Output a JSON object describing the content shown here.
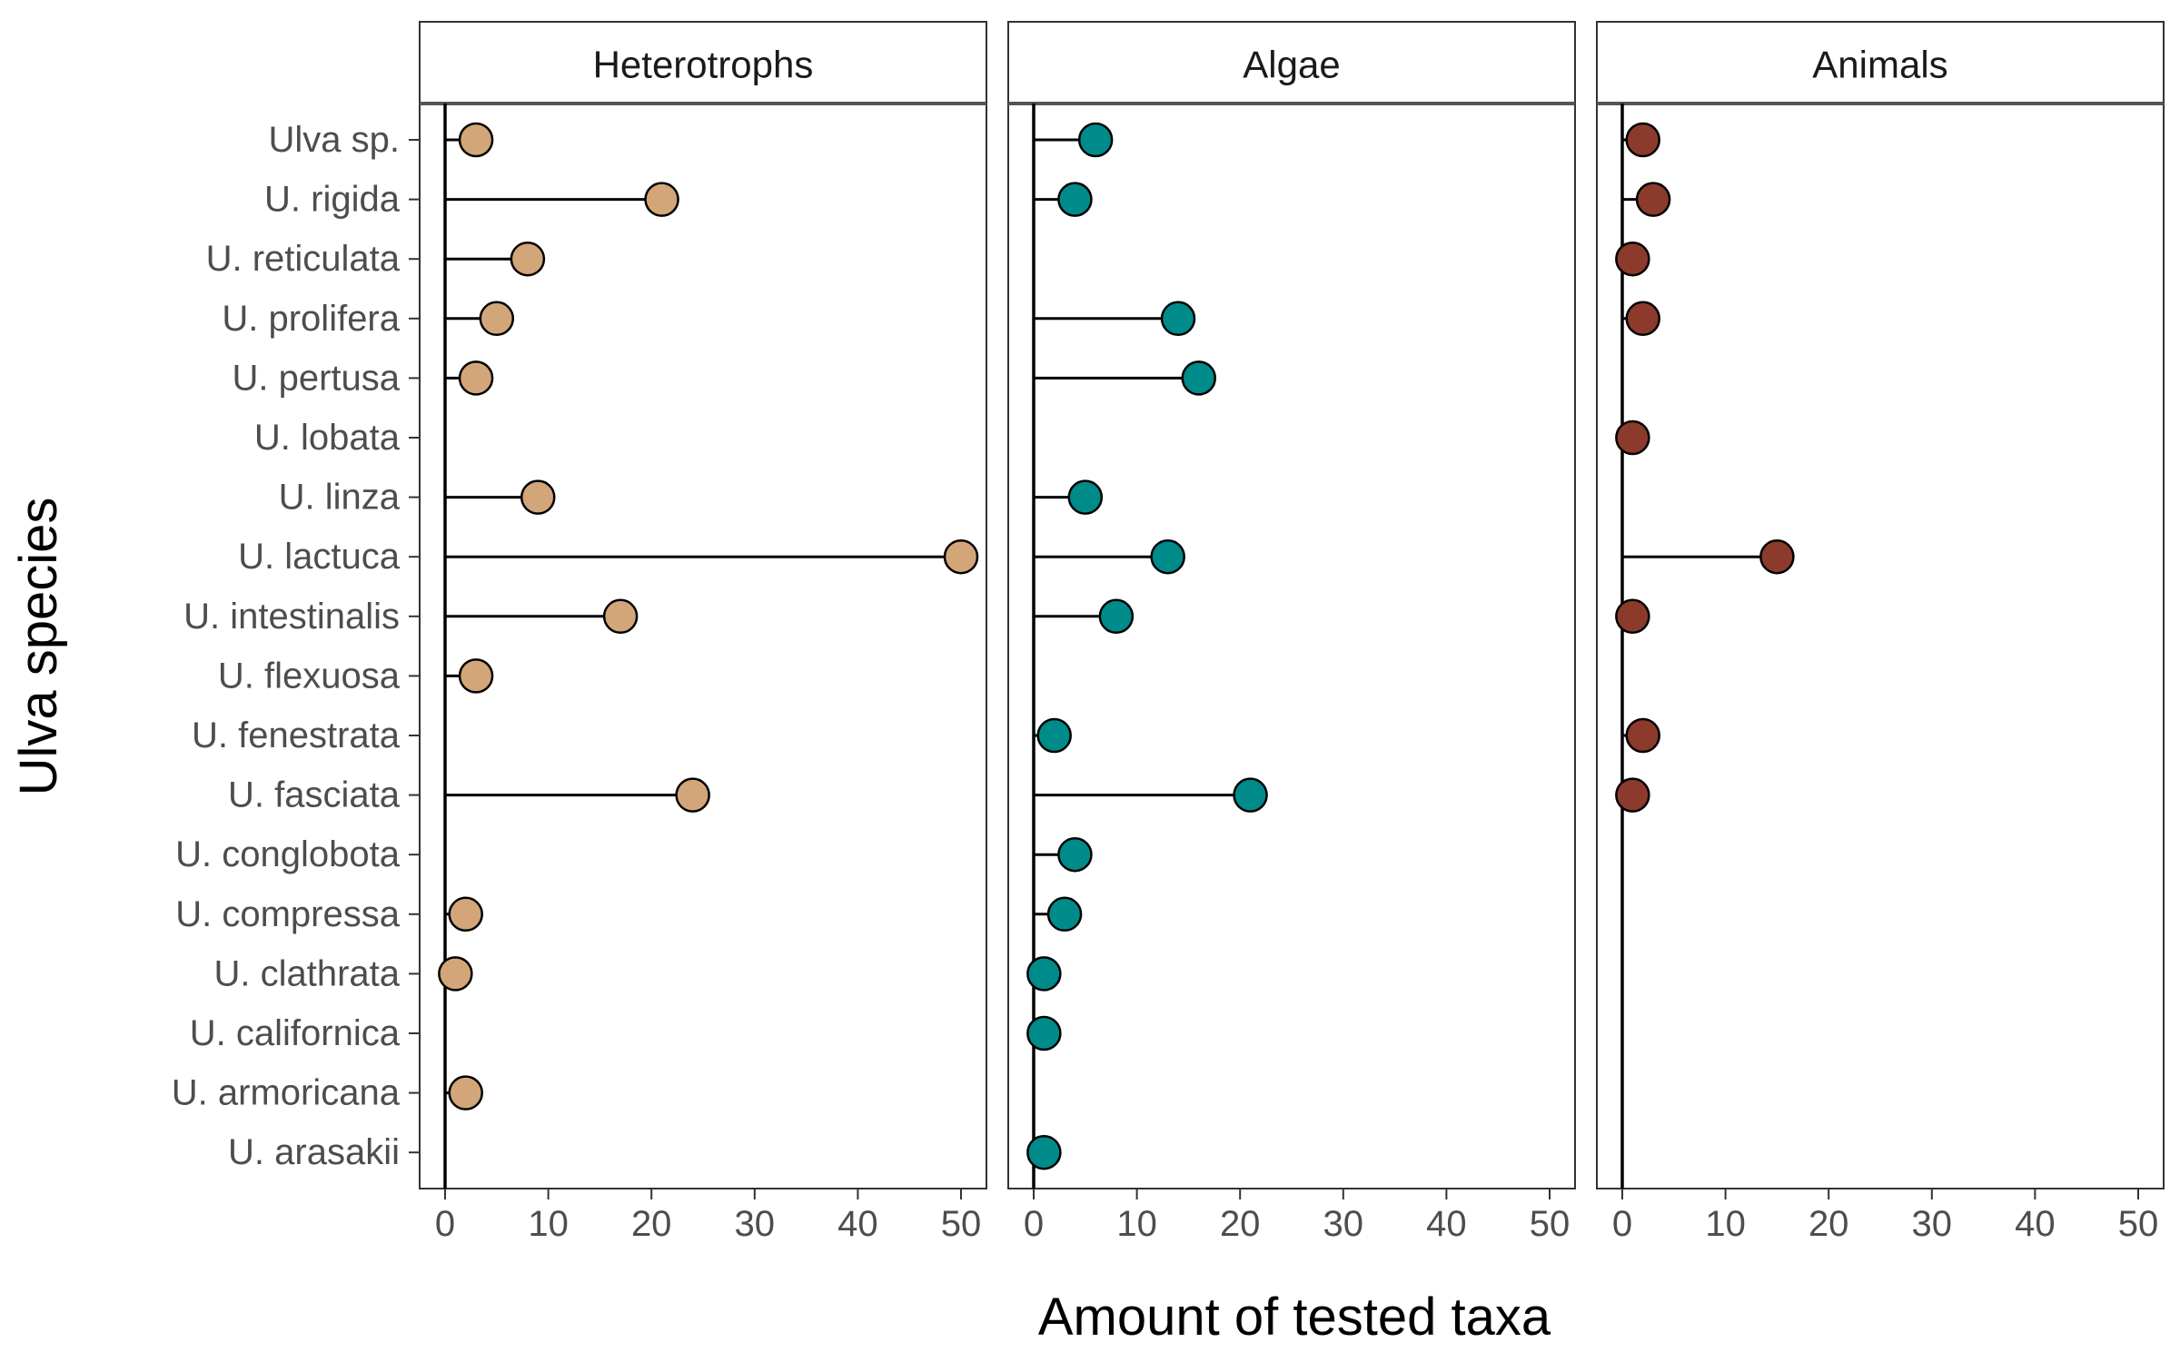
{
  "chart_data": {
    "type": "lollipop",
    "facets": [
      "Heterotrophs",
      "Algae",
      "Animals"
    ],
    "xlabel": "Amount of tested taxa",
    "ylabel": "Ulva species",
    "xlim": [
      0,
      50
    ],
    "xticks": [
      0,
      10,
      20,
      30,
      40,
      50
    ],
    "categories": [
      "Ulva sp.",
      "U. rigida",
      "U. reticulata",
      "U. prolifera",
      "U. pertusa",
      "U. lobata",
      "U. linza",
      "U. lactuca",
      "U. intestinalis",
      "U. flexuosa",
      "U. fenestrata",
      "U. fasciata",
      "U. conglobota",
      "U. compressa",
      "U. clathrata",
      "U. californica",
      "U. armoricana",
      "U. arasakii"
    ],
    "series": [
      {
        "name": "Heterotrophs",
        "color": "#D2A679",
        "values": [
          3,
          21,
          8,
          5,
          3,
          null,
          9,
          50,
          17,
          3,
          null,
          24,
          null,
          2,
          1,
          null,
          2,
          null
        ]
      },
      {
        "name": "Algae",
        "color": "#008B8B",
        "values": [
          6,
          4,
          null,
          14,
          16,
          null,
          5,
          13,
          8,
          null,
          2,
          21,
          4,
          3,
          1,
          1,
          null,
          1
        ]
      },
      {
        "name": "Animals",
        "color": "#8B3A2B",
        "values": [
          2,
          3,
          1,
          2,
          null,
          1,
          null,
          15,
          1,
          null,
          2,
          1,
          null,
          null,
          null,
          null,
          null,
          null
        ]
      }
    ]
  }
}
